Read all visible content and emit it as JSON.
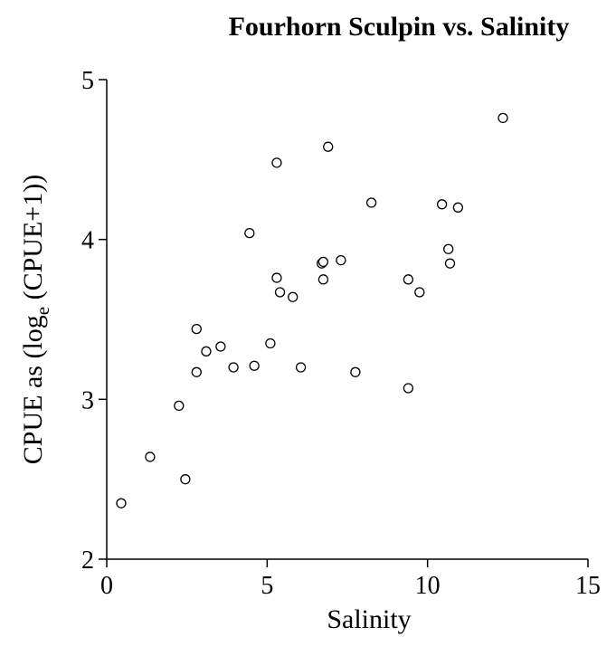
{
  "chart_data": {
    "type": "scatter",
    "title": "Fourhorn Sculpin vs. Salinity",
    "xlabel": "Salinity",
    "ylabel": {
      "prefix": "CPUE as (log",
      "subscript": "e",
      "suffix": " (CPUE+1))"
    },
    "xlim": [
      0,
      15
    ],
    "ylim": [
      2,
      5
    ],
    "xticks": [
      0,
      5,
      10,
      15
    ],
    "yticks": [
      2,
      3,
      4,
      5
    ],
    "xtick_labels": [
      "0",
      "5",
      "10",
      "15"
    ],
    "ytick_labels": [
      "2",
      "3",
      "4",
      "5"
    ],
    "grid": false,
    "marker": "open-circle",
    "points": [
      {
        "x": 0.45,
        "y": 2.35
      },
      {
        "x": 1.35,
        "y": 2.64
      },
      {
        "x": 2.25,
        "y": 2.96
      },
      {
        "x": 2.45,
        "y": 2.5
      },
      {
        "x": 2.8,
        "y": 3.44
      },
      {
        "x": 2.8,
        "y": 3.17
      },
      {
        "x": 3.1,
        "y": 3.3
      },
      {
        "x": 3.55,
        "y": 3.33
      },
      {
        "x": 3.95,
        "y": 3.2
      },
      {
        "x": 4.45,
        "y": 4.04
      },
      {
        "x": 4.6,
        "y": 3.21
      },
      {
        "x": 5.1,
        "y": 3.35
      },
      {
        "x": 5.3,
        "y": 4.48
      },
      {
        "x": 5.3,
        "y": 3.76
      },
      {
        "x": 5.4,
        "y": 3.67
      },
      {
        "x": 5.8,
        "y": 3.64
      },
      {
        "x": 6.05,
        "y": 3.2
      },
      {
        "x": 6.7,
        "y": 3.85
      },
      {
        "x": 6.75,
        "y": 3.86
      },
      {
        "x": 6.75,
        "y": 3.75
      },
      {
        "x": 6.9,
        "y": 4.58
      },
      {
        "x": 7.3,
        "y": 3.87
      },
      {
        "x": 7.75,
        "y": 3.17
      },
      {
        "x": 8.25,
        "y": 4.23
      },
      {
        "x": 9.4,
        "y": 3.75
      },
      {
        "x": 9.4,
        "y": 3.07
      },
      {
        "x": 9.75,
        "y": 3.67
      },
      {
        "x": 10.45,
        "y": 4.22
      },
      {
        "x": 10.65,
        "y": 3.94
      },
      {
        "x": 10.7,
        "y": 3.85
      },
      {
        "x": 10.95,
        "y": 4.2
      },
      {
        "x": 12.35,
        "y": 4.76
      }
    ]
  }
}
